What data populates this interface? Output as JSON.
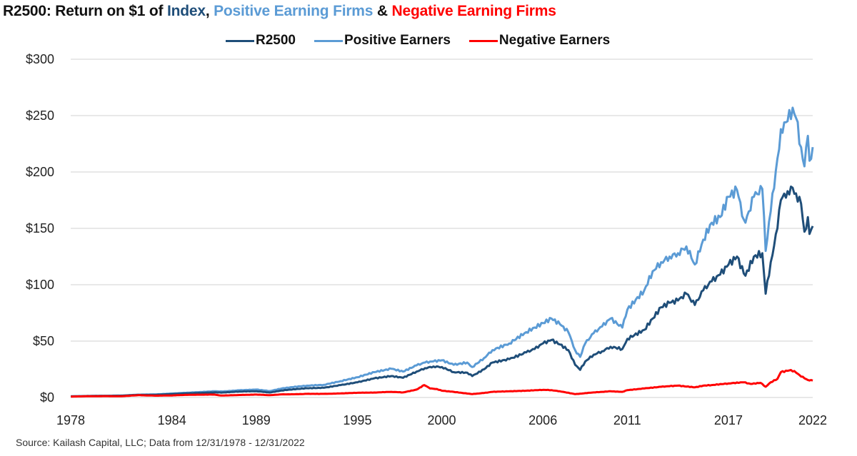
{
  "title": {
    "prefix": "R2500: Return on $1 of ",
    "index_word": "Index",
    "sep1": ", ",
    "positive_words": "Positive Earning Firms",
    "sep2": " & ",
    "negative_words": "Negative Earning Firms"
  },
  "source": "Source: Kailash Capital, LLC; Data from 12/31/1978 - 12/31/2022",
  "chart_data": {
    "type": "line",
    "title": "R2500: Return on $1 of Index, Positive Earning Firms & Negative Earning Firms",
    "xlabel": "",
    "ylabel": "",
    "ylim": [
      0,
      300
    ],
    "xlim": [
      1978.99,
      2022.99
    ],
    "grid": true,
    "legend": "top-center",
    "y_ticks": [
      0,
      50,
      100,
      150,
      200,
      250,
      300
    ],
    "y_tick_labels": [
      "$0",
      "$50",
      "$100",
      "$150",
      "$200",
      "$250",
      "$300"
    ],
    "x_ticks": [
      1978.99,
      1984.99,
      1989.99,
      1995.99,
      2000.99,
      2006.99,
      2011.99,
      2017.99,
      2022.99
    ],
    "x_tick_labels": [
      "1978",
      "1984",
      "1989",
      "1995",
      "2000",
      "2006",
      "2011",
      "2017",
      "2022"
    ],
    "series": [
      {
        "name": "R2500",
        "color": "#1f4e79",
        "x": [
          1979.0,
          1980.0,
          1981.0,
          1982.0,
          1983.0,
          1984.0,
          1985.0,
          1986.0,
          1987.5,
          1988.0,
          1989.0,
          1990.0,
          1990.8,
          1991.5,
          1992.0,
          1993.0,
          1994.0,
          1995.0,
          1996.0,
          1997.0,
          1998.0,
          1998.7,
          1999.5,
          2000.0,
          2000.5,
          2001.0,
          2001.7,
          2002.5,
          2002.8,
          2003.5,
          2004.0,
          2005.0,
          2006.0,
          2006.5,
          2007.0,
          2007.5,
          2008.0,
          2008.5,
          2008.9,
          2009.2,
          2009.5,
          2010.0,
          2010.5,
          2011.0,
          2011.7,
          2012.0,
          2013.0,
          2013.5,
          2014.0,
          2014.5,
          2015.0,
          2015.5,
          2016.0,
          2016.5,
          2017.0,
          2017.5,
          2018.0,
          2018.5,
          2018.9,
          2019.0,
          2019.5,
          2020.0,
          2020.2,
          2020.5,
          2020.9,
          2021.1,
          2021.5,
          2021.8,
          2022.0,
          2022.3,
          2022.5,
          2022.7,
          2022.8,
          2022.99
        ],
        "values": [
          1.0,
          1.3,
          1.4,
          1.6,
          2.3,
          2.4,
          3.1,
          3.7,
          4.5,
          4.4,
          5.3,
          5.6,
          4.4,
          6.2,
          7.0,
          8.2,
          8.6,
          11.0,
          13.5,
          17.0,
          19.0,
          17.5,
          23.0,
          26.0,
          27.5,
          27.0,
          22.5,
          22.0,
          19.0,
          25.0,
          31.0,
          34.0,
          40.0,
          43.0,
          48.0,
          51.0,
          47.0,
          42.0,
          29.0,
          24.5,
          32.0,
          38.0,
          41.0,
          45.0,
          43.0,
          52.0,
          60.0,
          70.0,
          80.0,
          84.0,
          86.0,
          92.0,
          82.0,
          95.0,
          103.0,
          109.0,
          118.0,
          125.0,
          110.0,
          108.0,
          125.0,
          128.0,
          92.0,
          120.0,
          150.0,
          175.0,
          183.0,
          186.0,
          181.0,
          172.0,
          147.0,
          160.0,
          145.0,
          152.0
        ]
      },
      {
        "name": "Positive Earners",
        "color": "#5b9bd5",
        "x": [
          1979.0,
          1980.0,
          1981.0,
          1982.0,
          1983.0,
          1984.0,
          1985.0,
          1986.0,
          1987.5,
          1988.0,
          1989.0,
          1990.0,
          1990.8,
          1991.5,
          1992.0,
          1993.0,
          1994.0,
          1995.0,
          1996.0,
          1997.0,
          1998.0,
          1998.7,
          1999.5,
          2000.0,
          2000.5,
          2001.0,
          2001.7,
          2002.5,
          2002.8,
          2003.5,
          2004.0,
          2005.0,
          2006.0,
          2006.5,
          2007.0,
          2007.5,
          2008.0,
          2008.5,
          2008.9,
          2009.2,
          2009.5,
          2010.0,
          2010.5,
          2011.0,
          2011.7,
          2012.0,
          2013.0,
          2013.5,
          2014.0,
          2014.5,
          2015.0,
          2015.5,
          2016.0,
          2016.5,
          2017.0,
          2017.5,
          2018.0,
          2018.5,
          2018.9,
          2019.0,
          2019.5,
          2020.0,
          2020.2,
          2020.5,
          2020.9,
          2021.1,
          2021.5,
          2021.8,
          2022.0,
          2022.3,
          2022.5,
          2022.7,
          2022.8,
          2022.99
        ],
        "values": [
          1.0,
          1.3,
          1.5,
          1.7,
          2.5,
          2.7,
          3.5,
          4.3,
          5.5,
          5.3,
          6.4,
          7.0,
          5.7,
          8.0,
          9.0,
          10.5,
          11.2,
          14.5,
          18.0,
          22.5,
          25.5,
          23.0,
          28.5,
          31.0,
          32.0,
          33.0,
          29.0,
          31.0,
          27.0,
          35.0,
          42.0,
          48.0,
          58.0,
          62.0,
          66.0,
          70.0,
          65.0,
          58.0,
          42.0,
          36.0,
          48.0,
          57.0,
          63.0,
          70.0,
          62.0,
          78.0,
          95.0,
          112.0,
          120.0,
          125.0,
          128.0,
          134.0,
          118.0,
          140.0,
          155.0,
          160.0,
          178.0,
          184.0,
          158.0,
          155.0,
          178.0,
          185.0,
          130.0,
          165.0,
          212.0,
          238.0,
          245.0,
          257.0,
          248.0,
          222.0,
          205.0,
          232.0,
          210.0,
          222.0
        ]
      },
      {
        "name": "Negative Earners",
        "color": "#ff0000",
        "x": [
          1979.0,
          1980.0,
          1981.0,
          1982.0,
          1983.0,
          1984.0,
          1985.0,
          1986.0,
          1987.5,
          1987.9,
          1989.0,
          1990.0,
          1990.8,
          1991.5,
          1992.0,
          1993.0,
          1994.0,
          1995.0,
          1996.0,
          1997.0,
          1998.0,
          1998.7,
          1999.5,
          1999.95,
          2000.3,
          2000.7,
          2001.0,
          2001.7,
          2002.5,
          2002.8,
          2003.5,
          2004.0,
          2005.0,
          2006.0,
          2007.0,
          2007.5,
          2008.0,
          2008.9,
          2009.3,
          2010.0,
          2011.0,
          2011.7,
          2012.0,
          2013.0,
          2014.0,
          2014.5,
          2015.0,
          2016.0,
          2016.5,
          2017.0,
          2018.0,
          2018.9,
          2019.3,
          2019.9,
          2020.2,
          2020.5,
          2020.9,
          2021.1,
          2021.6,
          2021.9,
          2022.2,
          2022.5,
          2022.7,
          2022.99
        ],
        "values": [
          0.8,
          1.1,
          1.2,
          1.1,
          2.0,
          1.6,
          1.8,
          2.4,
          2.6,
          1.7,
          2.2,
          2.6,
          2.0,
          2.8,
          2.8,
          3.2,
          3.2,
          3.6,
          4.2,
          4.4,
          5.0,
          4.5,
          7.0,
          11.0,
          8.0,
          7.5,
          6.0,
          5.0,
          3.5,
          3.0,
          4.0,
          5.0,
          5.5,
          6.0,
          6.8,
          6.5,
          5.5,
          3.0,
          3.5,
          4.5,
          5.5,
          5.0,
          6.5,
          8.0,
          9.5,
          10.0,
          10.5,
          9.0,
          10.5,
          11.0,
          12.5,
          13.5,
          12.0,
          13.0,
          9.5,
          13.5,
          16.5,
          22.5,
          24.0,
          23.5,
          20.0,
          17.0,
          15.5,
          15.0
        ]
      }
    ]
  }
}
